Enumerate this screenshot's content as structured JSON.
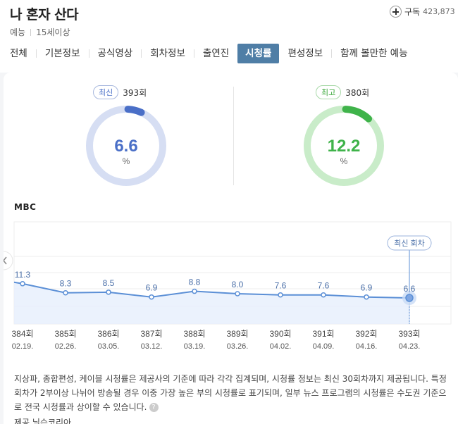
{
  "header": {
    "title": "나 혼자 산다",
    "genre": "예능",
    "rating": "15세이상",
    "subscribe_label": "구독",
    "subscribe_count": "423,873"
  },
  "tabs": [
    {
      "label": "전체"
    },
    {
      "label": "기본정보"
    },
    {
      "label": "공식영상"
    },
    {
      "label": "회차정보"
    },
    {
      "label": "출연진"
    },
    {
      "label": "시청률",
      "active": true
    },
    {
      "label": "편성정보"
    },
    {
      "label": "함께 볼만한 예능"
    }
  ],
  "latest": {
    "badge": "최신",
    "episode": "393회",
    "value": "6.6",
    "unit": "%",
    "color": "#4a6fc7",
    "track": "#d6def3"
  },
  "best": {
    "badge": "최고",
    "episode": "380회",
    "value": "12.2",
    "unit": "%",
    "color": "#3fb34a",
    "track": "#c9ecc9"
  },
  "broadcaster": "MBC",
  "chart_data": {
    "type": "line",
    "categories": [
      "384회",
      "385회",
      "386회",
      "387회",
      "388회",
      "389회",
      "390회",
      "391회",
      "392회",
      "393회"
    ],
    "dates": [
      "02.19.",
      "02.26.",
      "03.05.",
      "03.12.",
      "03.19.",
      "03.26.",
      "04.02.",
      "04.09.",
      "04.16.",
      "04.23."
    ],
    "values": [
      11.3,
      8.3,
      8.5,
      6.9,
      8.8,
      8.0,
      7.6,
      7.6,
      6.9,
      6.6
    ],
    "series_color": "#5b8fd6",
    "latest_tag": "최신 회차"
  },
  "notice": {
    "text": "지상파, 종합편성, 케이블 시청률은 제공사의 기준에 따라 각각 집계되며, 시청률 정보는 최신 30회차까지 제공됩니다. 특정 회차가 2부이상 나뉘어 방송될 경우 이중 가장 높은 부의 시청률로 표기되며, 일부 뉴스 프로그램의 시청률은 수도권 기준으로 전국 시청률과 상이할 수 있습니다.",
    "help": "?",
    "source": "제공 닐슨코리아"
  }
}
